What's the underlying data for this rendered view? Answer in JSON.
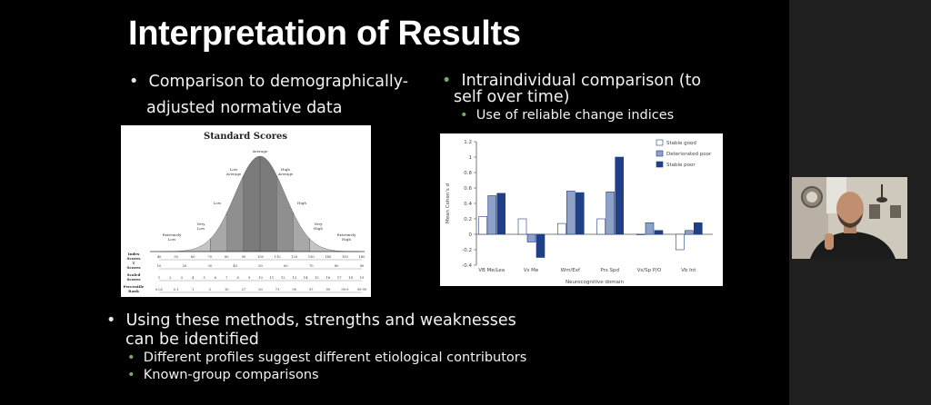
{
  "title": "Interpretation of Results",
  "left_bullet": {
    "line1": "Comparison to demographically-",
    "line2": "adjusted normative data"
  },
  "right_bullet": {
    "line1": "Intraindividual comparison (to",
    "line2": "self over time)",
    "sub": "Use of reliable change indices"
  },
  "bottom_bullet": {
    "line1": "Using these methods, strengths and weaknesses",
    "line2": "can be identified",
    "subs": [
      "Different profiles suggest different etiological contributors",
      "Known-group comparisons"
    ]
  },
  "standard_scores_figure": {
    "title": "Standard Scores",
    "curve_labels": [
      "Extremely Low",
      "Very Low",
      "Low",
      "Low Average",
      "Average",
      "High Average",
      "High",
      "Very High",
      "Extremely High"
    ],
    "rows": [
      {
        "label": "Index Scores",
        "ticks": [
          "40",
          "50",
          "60",
          "70",
          "80",
          "90",
          "100",
          "110",
          "120",
          "130",
          "140",
          "150",
          "160"
        ]
      },
      {
        "label": "T Scores",
        "ticks": [
          "10",
          "20",
          "30",
          "40",
          "50",
          "60",
          "70",
          "80",
          "90"
        ]
      },
      {
        "label": "Scaled Scores",
        "ticks": [
          "1",
          "2",
          "3",
          "4",
          "5",
          "6",
          "7",
          "8",
          "9",
          "10",
          "11",
          "12",
          "13",
          "14",
          "15",
          "16",
          "17",
          "18",
          "19"
        ]
      },
      {
        "label": "Percentile Rank",
        "ticks": [
          "0.02",
          "0.1",
          "1",
          "3",
          "10",
          "27",
          "50",
          "73",
          "90",
          "97",
          "99",
          "99.9",
          "99.99"
        ]
      }
    ]
  },
  "chart_data": {
    "type": "bar",
    "categories": [
      "VB Me/Lea",
      "Vs Me",
      "Wm/Exf",
      "Prs Spd",
      "Vs/Sp P/O",
      "Vb Int"
    ],
    "series": [
      {
        "name": "Stable good",
        "values": [
          0.23,
          0.2,
          0.14,
          0.2,
          0.0,
          -0.2
        ],
        "color": "#ffffff"
      },
      {
        "name": "Deteriorated poor",
        "values": [
          0.5,
          -0.1,
          0.56,
          0.55,
          0.15,
          0.05
        ],
        "color": "#8ea2c8"
      },
      {
        "name": "Stable poor",
        "values": [
          0.53,
          -0.3,
          0.54,
          1.0,
          0.05,
          0.15
        ],
        "color": "#1f3f86"
      }
    ],
    "xlabel": "Neurocognitive domain",
    "ylabel": "Mean Cohen's d",
    "ylim": [
      -0.4,
      1.2
    ],
    "yticks": [
      "1.2",
      "1",
      "0.8",
      "0.6",
      "0.4",
      "0.2",
      "0",
      "-0.2",
      "-0.4"
    ],
    "legend": "top-right",
    "grid": false
  }
}
